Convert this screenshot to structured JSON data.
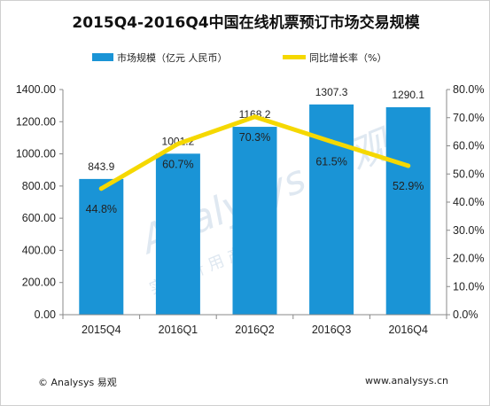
{
  "chart_data": {
    "type": "bar",
    "title": "2015Q4-2016Q4中国在线机票预订市场交易规模",
    "categories": [
      "2015Q4",
      "2016Q1",
      "2016Q2",
      "2016Q3",
      "2016Q4"
    ],
    "series": [
      {
        "name": "市场规模（亿元 人民币）",
        "type": "bar",
        "axis": "left",
        "color": "#1a94d6",
        "values": [
          843.9,
          1001.2,
          1168.2,
          1307.3,
          1290.1
        ],
        "labels": [
          "843.9",
          "1001.2",
          "1168.2",
          "1307.3",
          "1290.1"
        ]
      },
      {
        "name": "同比增长率（%）",
        "type": "line",
        "axis": "right",
        "color": "#f5d800",
        "values": [
          44.8,
          60.7,
          70.3,
          61.5,
          52.9
        ],
        "labels": [
          "44.8%",
          "60.7%",
          "70.3%",
          "61.5%",
          "52.9%"
        ]
      }
    ],
    "y_left": {
      "ylim": [
        0,
        1400
      ],
      "ticks": [
        "0.00",
        "200.00",
        "400.00",
        "600.00",
        "800.00",
        "1000.00",
        "1200.00",
        "1400.00"
      ]
    },
    "y_right": {
      "ylim": [
        0,
        80
      ],
      "ticks": [
        "0.0%",
        "10.0%",
        "20.0%",
        "30.0%",
        "40.0%",
        "50.0%",
        "60.0%",
        "70.0%",
        "80.0%"
      ]
    },
    "legend_position": "top",
    "grid": false
  },
  "footer": {
    "left": "© Analysys 易观",
    "right": "www.analysys.cn"
  },
  "watermark": {
    "brand": "Analysys 易观",
    "slogan": "实 分 析 用 产 户"
  }
}
